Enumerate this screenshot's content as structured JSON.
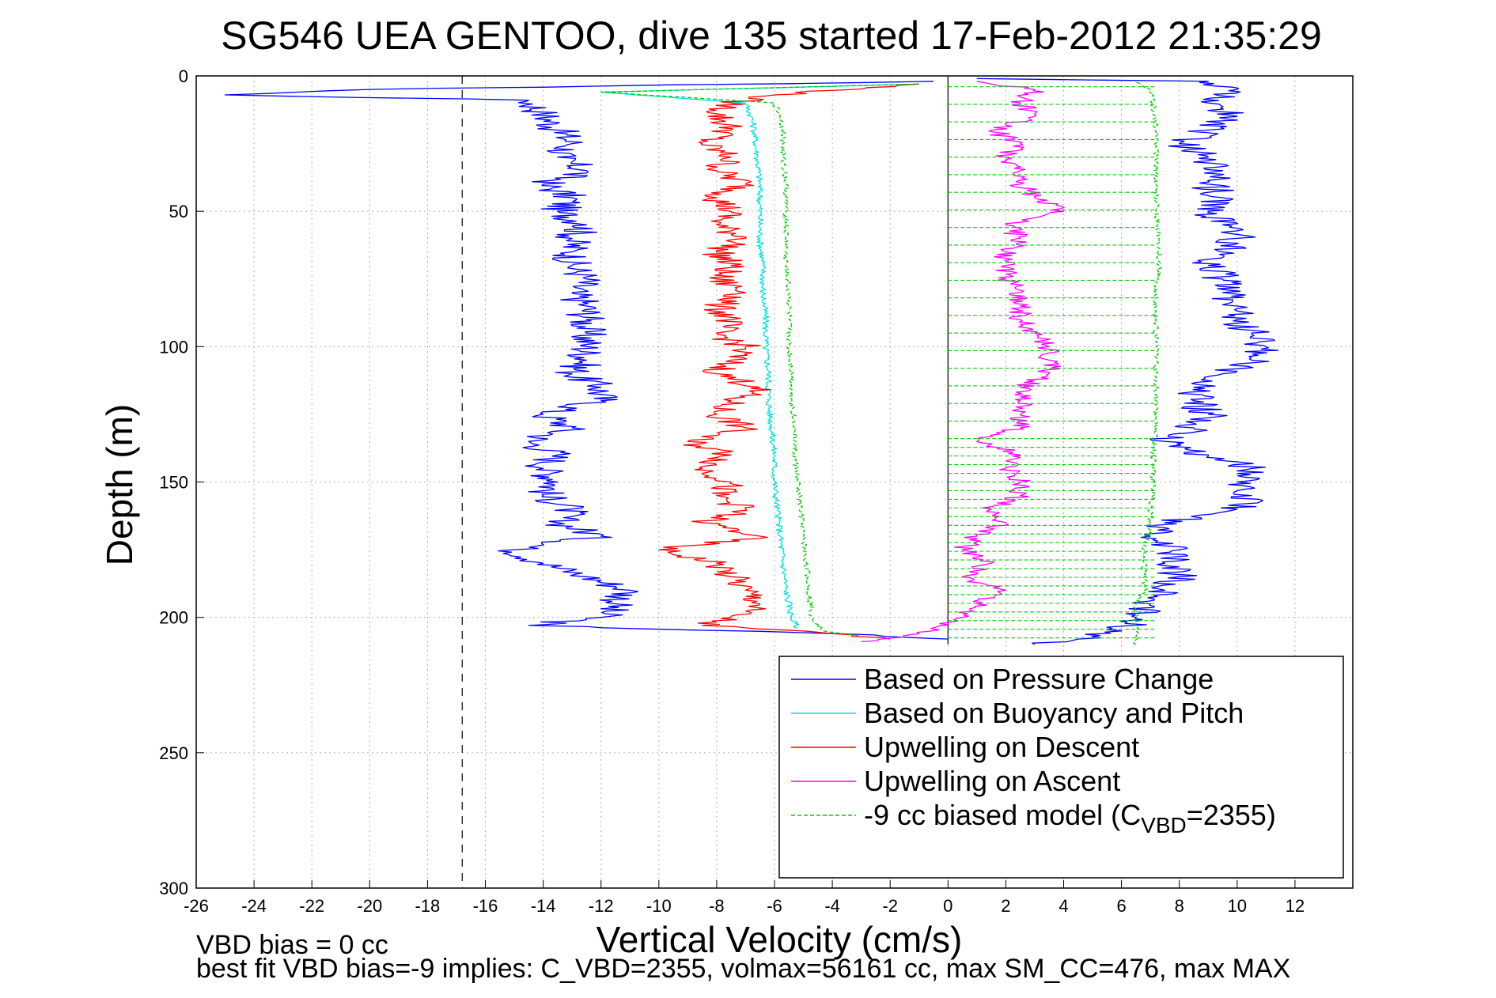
{
  "chart_data": {
    "type": "line",
    "title": "SG546 UEA GENTOO, dive 135 started 17-Feb-2012 21:35:29",
    "xlabel": "Vertical Velocity (cm/s)",
    "ylabel": "Depth (m)",
    "xlim": [
      -26,
      14
    ],
    "ylim": [
      300,
      0
    ],
    "y_reversed": true,
    "grid": true,
    "x_ticks": [
      -26,
      -24,
      -22,
      -20,
      -18,
      -16,
      -14,
      -12,
      -10,
      -8,
      -6,
      -4,
      -2,
      0,
      2,
      4,
      6,
      8,
      10,
      12
    ],
    "y_ticks": [
      0,
      50,
      100,
      150,
      200,
      250,
      300
    ],
    "legend_position": "bottom-right",
    "reference_lines": [
      {
        "style": "dashed",
        "color": "#000000",
        "x": -16.8
      },
      {
        "style": "solid",
        "color": "#000000",
        "x": 0
      }
    ],
    "series": [
      {
        "name": "Based on Pressure Change",
        "color": "#0000ff",
        "descent": {
          "depth": [
            2,
            5,
            7,
            9,
            14,
            20,
            25,
            30,
            35,
            40,
            45,
            50,
            55,
            60,
            65,
            70,
            75,
            80,
            85,
            90,
            95,
            100,
            105,
            110,
            115,
            120,
            125,
            130,
            135,
            140,
            145,
            150,
            155,
            160,
            165,
            170,
            175,
            180,
            185,
            190,
            195,
            200,
            203,
            206,
            208
          ],
          "value": [
            -0.5,
            -20,
            -25,
            -14.5,
            -14,
            -13.5,
            -13,
            -13.5,
            -12.5,
            -14,
            -13,
            -13.5,
            -12.5,
            -13,
            -13,
            -13,
            -12.5,
            -13,
            -12.5,
            -12.5,
            -12.5,
            -12.5,
            -12.5,
            -13,
            -12,
            -12,
            -14,
            -13,
            -14.5,
            -13.5,
            -14,
            -13.5,
            -14,
            -13,
            -13.5,
            -12,
            -15,
            -14,
            -12.5,
            -11,
            -11.5,
            -12,
            -14.5,
            -4,
            0
          ]
        },
        "ascent": {
          "depth": [
            210,
            208,
            205,
            200,
            195,
            190,
            185,
            180,
            175,
            170,
            165,
            160,
            155,
            150,
            145,
            140,
            135,
            130,
            125,
            120,
            115,
            110,
            105,
            100,
            95,
            90,
            85,
            80,
            75,
            70,
            65,
            60,
            55,
            50,
            45,
            40,
            35,
            30,
            25,
            20,
            15,
            10,
            5,
            2,
            1
          ],
          "value": [
            3,
            4.5,
            6,
            6.5,
            7,
            7.5,
            8,
            7.5,
            8,
            7,
            7.5,
            10,
            10.5,
            10,
            10.5,
            9,
            7.5,
            8.5,
            9,
            8.5,
            8.5,
            9.5,
            10.5,
            11,
            10.5,
            10,
            10,
            9.5,
            9.5,
            9,
            9.5,
            10,
            9.5,
            9,
            9.5,
            9,
            9.5,
            9,
            8,
            9,
            10,
            9,
            10,
            9,
            1
          ]
        }
      },
      {
        "name": "Based on Buoyancy and Pitch",
        "color": "#00e0e0",
        "descent": {
          "depth": [
            3,
            6,
            10,
            15,
            20,
            30,
            40,
            50,
            60,
            70,
            80,
            90,
            100,
            110,
            120,
            130,
            140,
            150,
            160,
            170,
            180,
            190,
            200,
            204
          ],
          "value": [
            -1,
            -12,
            -7,
            -6.8,
            -6.7,
            -6.6,
            -6.5,
            -6.5,
            -6.5,
            -6.4,
            -6.4,
            -6.3,
            -6.3,
            -6.2,
            -6.2,
            -6.1,
            -6,
            -6,
            -5.9,
            -5.8,
            -5.7,
            -5.6,
            -5.4,
            -5.2
          ]
        }
      },
      {
        "name": "Upwelling on Descent",
        "color": "#ff0000",
        "descent": {
          "depth": [
            3,
            7,
            10,
            14,
            20,
            25,
            30,
            35,
            40,
            45,
            50,
            55,
            60,
            65,
            70,
            75,
            80,
            85,
            90,
            95,
            100,
            105,
            110,
            115,
            120,
            125,
            130,
            135,
            140,
            145,
            150,
            155,
            160,
            165,
            170,
            175,
            180,
            185,
            190,
            195,
            200,
            203,
            206,
            208
          ],
          "value": [
            -1,
            -6,
            -7.5,
            -8,
            -7.5,
            -8.5,
            -7.5,
            -8,
            -7,
            -8,
            -7.5,
            -8,
            -7,
            -8,
            -7.5,
            -8,
            -7,
            -8,
            -7.5,
            -8,
            -7,
            -7.5,
            -8,
            -6.5,
            -7.5,
            -8,
            -7,
            -9,
            -7.5,
            -8.5,
            -7.5,
            -8,
            -7,
            -8.5,
            -6.5,
            -10,
            -8,
            -7.5,
            -7,
            -6.5,
            -7.5,
            -8.5,
            -4,
            -2
          ]
        }
      },
      {
        "name": "Upwelling on Ascent",
        "color": "#ff00ff",
        "ascent": {
          "depth": [
            209,
            206,
            200,
            195,
            190,
            185,
            180,
            175,
            170,
            165,
            160,
            155,
            150,
            145,
            140,
            135,
            130,
            125,
            120,
            115,
            110,
            105,
            100,
            95,
            90,
            85,
            80,
            75,
            70,
            65,
            60,
            55,
            50,
            45,
            40,
            35,
            30,
            25,
            20,
            15,
            10,
            5,
            2
          ],
          "value": [
            -3,
            -1,
            0.5,
            1,
            2,
            0.5,
            1.5,
            0.5,
            1,
            2,
            1.5,
            2.5,
            2.5,
            2,
            2.5,
            1,
            2.5,
            2.5,
            2.5,
            2.5,
            3.5,
            3.5,
            3.5,
            3,
            2.5,
            2.5,
            2.5,
            2,
            2,
            2,
            2.5,
            2,
            4,
            3,
            2.5,
            2.5,
            2,
            2.5,
            1.5,
            3,
            2.5,
            3,
            1
          ]
        }
      },
      {
        "name": "-9 cc biased model (C",
        "name_subscript": "VBD",
        "name_suffix": "=2355)",
        "color": "#00cc00",
        "dashed": true,
        "descent": {
          "depth": [
            3,
            6,
            10,
            15,
            20,
            30,
            40,
            50,
            60,
            70,
            80,
            90,
            100,
            110,
            120,
            130,
            140,
            150,
            160,
            170,
            180,
            190,
            200,
            205,
            207
          ],
          "value": [
            -1,
            -12,
            -6,
            -5.8,
            -5.7,
            -5.7,
            -5.6,
            -5.6,
            -5.6,
            -5.6,
            -5.5,
            -5.5,
            -5.5,
            -5.4,
            -5.4,
            -5.3,
            -5.3,
            -5.2,
            -5.1,
            -5,
            -4.9,
            -4.8,
            -4.7,
            -4.3,
            -3
          ]
        },
        "ascent": {
          "depth": [
            210,
            205,
            200,
            195,
            190,
            185,
            180,
            175,
            170,
            165,
            160,
            155,
            150,
            140,
            130,
            120,
            110,
            100,
            90,
            80,
            70,
            60,
            50,
            40,
            30,
            20,
            10,
            5,
            2
          ],
          "value": [
            6.5,
            6.5,
            6.5,
            6.5,
            6.8,
            6.8,
            6.8,
            6.8,
            6.9,
            7,
            7,
            7.1,
            7.1,
            7.1,
            7.2,
            7.2,
            7.2,
            7.2,
            7.2,
            7.2,
            7.3,
            7.3,
            7.2,
            7.2,
            7.2,
            7.2,
            7.1,
            7,
            6.5
          ]
        }
      }
    ]
  },
  "notes": {
    "bias_line": "VBD bias = 0 cc",
    "fit_line": "best fit VBD bias=-9 implies: C_VBD=2355, volmax=56161 cc, max SM_CC=476, max MAX"
  }
}
